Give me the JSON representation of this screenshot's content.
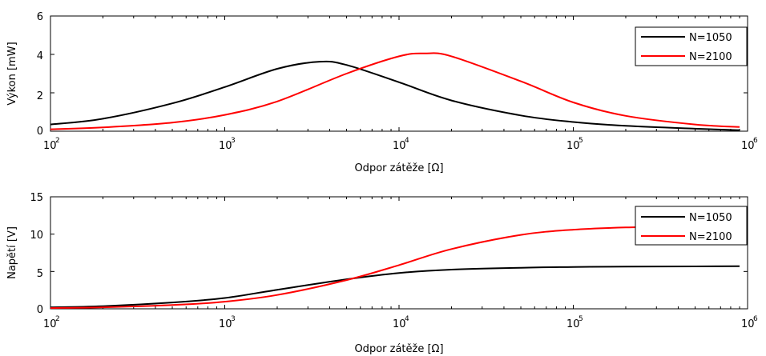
{
  "chart_data": [
    {
      "type": "line",
      "title": "",
      "xlabel": "Odpor zátěže [Ω]",
      "ylabel": "Výkon [mW]",
      "xscale": "log",
      "xlim": [
        100,
        1000000
      ],
      "ylim": [
        0,
        6
      ],
      "yticks": [
        "0",
        "2",
        "4",
        "6"
      ],
      "xticks": [
        {
          "base": "10",
          "exp": "2"
        },
        {
          "base": "10",
          "exp": "3"
        },
        {
          "base": "10",
          "exp": "4"
        },
        {
          "base": "10",
          "exp": "5"
        },
        {
          "base": "10",
          "exp": "6"
        }
      ],
      "grid": false,
      "legend": "top-right",
      "series": [
        {
          "name": "N=1050",
          "color": "#000000",
          "x": [
            100,
            200,
            500,
            1000,
            2000,
            3500,
            5000,
            10000,
            20000,
            50000,
            100000,
            200000,
            500000,
            900000
          ],
          "y": [
            0.35,
            0.65,
            1.45,
            2.3,
            3.25,
            3.62,
            3.45,
            2.55,
            1.6,
            0.82,
            0.48,
            0.28,
            0.13,
            0.05
          ]
        },
        {
          "name": "N=2100",
          "color": "#ff0000",
          "x": [
            100,
            200,
            500,
            1000,
            2000,
            5000,
            10000,
            14000,
            20000,
            50000,
            100000,
            200000,
            500000,
            900000
          ],
          "y": [
            0.1,
            0.2,
            0.45,
            0.85,
            1.55,
            3.0,
            3.9,
            4.05,
            3.9,
            2.6,
            1.5,
            0.8,
            0.35,
            0.22
          ]
        }
      ]
    },
    {
      "type": "line",
      "title": "",
      "xlabel": "Odpor zátěže [Ω]",
      "ylabel": "Napětí [V]",
      "xscale": "log",
      "xlim": [
        100,
        1000000
      ],
      "ylim": [
        0,
        15
      ],
      "yticks": [
        "0",
        "5",
        "10",
        "15"
      ],
      "xticks": [
        {
          "base": "10",
          "exp": "2"
        },
        {
          "base": "10",
          "exp": "3"
        },
        {
          "base": "10",
          "exp": "4"
        },
        {
          "base": "10",
          "exp": "5"
        },
        {
          "base": "10",
          "exp": "6"
        }
      ],
      "grid": false,
      "legend": "top-right",
      "series": [
        {
          "name": "N=1050",
          "color": "#000000",
          "x": [
            100,
            200,
            500,
            1000,
            2000,
            5000,
            10000,
            20000,
            50000,
            100000,
            200000,
            500000,
            900000
          ],
          "y": [
            0.2,
            0.35,
            0.85,
            1.45,
            2.55,
            3.95,
            4.8,
            5.25,
            5.5,
            5.6,
            5.65,
            5.68,
            5.7
          ]
        },
        {
          "name": "N=2100",
          "color": "#ff0000",
          "x": [
            100,
            200,
            500,
            1000,
            2000,
            5000,
            10000,
            20000,
            50000,
            100000,
            200000,
            400000
          ],
          "y": [
            0.1,
            0.2,
            0.5,
            0.95,
            1.85,
            3.85,
            5.85,
            8.0,
            9.9,
            10.6,
            10.9,
            11.0
          ]
        }
      ]
    }
  ]
}
